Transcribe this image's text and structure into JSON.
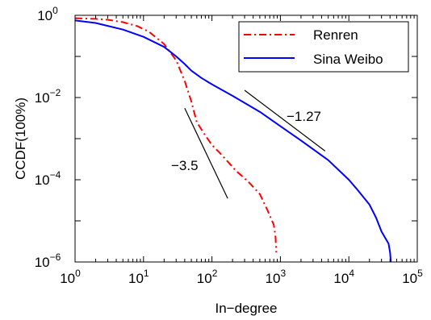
{
  "chart_data": {
    "type": "line",
    "title": "",
    "xlabel": "In−degree",
    "ylabel": "CCDF(100%)",
    "xscale": "log",
    "yscale": "log",
    "xlim": [
      1,
      100000
    ],
    "ylim": [
      1e-06,
      1
    ],
    "x_ticks": [
      {
        "base": "10",
        "exp": "0"
      },
      {
        "base": "10",
        "exp": "1"
      },
      {
        "base": "10",
        "exp": "2"
      },
      {
        "base": "10",
        "exp": "3"
      },
      {
        "base": "10",
        "exp": "4"
      },
      {
        "base": "10",
        "exp": "5"
      }
    ],
    "y_ticks": [
      {
        "base": "10",
        "exp": "0"
      },
      {
        "base": "10",
        "exp": "−2"
      },
      {
        "base": "10",
        "exp": "−4"
      },
      {
        "base": "10",
        "exp": "−6"
      }
    ],
    "grid": false,
    "legend_position": "top-right",
    "series": [
      {
        "name": "Renren",
        "color": "#ff0000",
        "style": "dash-dot",
        "x": [
          1,
          2,
          3,
          5,
          8,
          12,
          20,
          30,
          40,
          50,
          60,
          80,
          100,
          130,
          180,
          220,
          280,
          350,
          500,
          650,
          800,
          850,
          870
        ],
        "y": [
          0.85,
          0.82,
          0.78,
          0.68,
          0.55,
          0.4,
          0.2,
          0.08,
          0.025,
          0.008,
          0.0025,
          0.0012,
          0.0007,
          0.00045,
          0.00025,
          0.00017,
          0.00012,
          8.5e-05,
          4.5e-05,
          1.8e-05,
          8e-06,
          4e-06,
          1.7e-06
        ]
      },
      {
        "name": "Sina Weibo",
        "color": "#0000ff",
        "style": "solid",
        "x": [
          1,
          2,
          5,
          10,
          20,
          30,
          40,
          50,
          70,
          100,
          200,
          500,
          1000,
          2000,
          5000,
          10000,
          13000,
          20000,
          25000,
          30000,
          38000,
          40000,
          41000
        ],
        "y": [
          0.75,
          0.65,
          0.45,
          0.3,
          0.17,
          0.1,
          0.065,
          0.045,
          0.03,
          0.021,
          0.011,
          0.0045,
          0.002,
          0.0009,
          0.0003,
          0.0001,
          6e-05,
          2.5e-05,
          1.2e-05,
          5.5e-06,
          2.8e-06,
          1.7e-06,
          1e-06
        ]
      }
    ],
    "reference_lines": [
      {
        "label": "−1.27",
        "x": [
          300,
          4500
        ],
        "y": [
          0.015,
          0.0005
        ]
      },
      {
        "label": "−3.5",
        "x": [
          40,
          170
        ],
        "y": [
          0.0055,
          3.5e-05
        ]
      }
    ]
  }
}
